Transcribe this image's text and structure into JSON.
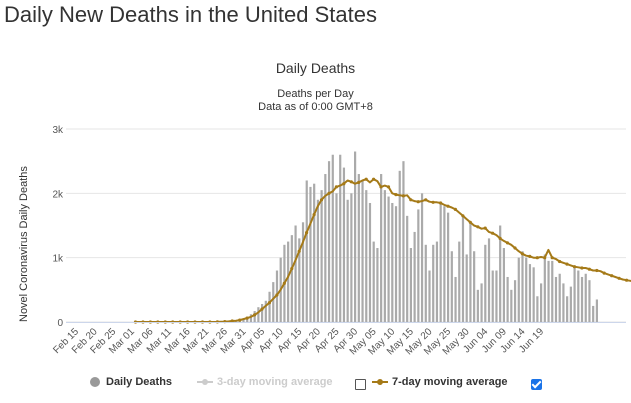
{
  "page": {
    "title": "Daily New Deaths in the United States"
  },
  "chart_data": {
    "type": "bar",
    "title": "Daily Deaths",
    "subtitle_lines": [
      "Deaths per Day",
      "Data as of 0:00 GMT+8"
    ],
    "ylabel": "Novel Coronavirus Daily Deaths",
    "xlabel": "",
    "ylim": [
      0,
      3000
    ],
    "y_ticks": [
      0,
      1000,
      2000,
      3000
    ],
    "y_tick_labels": [
      "0",
      "1k",
      "2k",
      "3k"
    ],
    "x_start_date": "Feb 15",
    "x_tick_labels": [
      "Feb 15",
      "Feb 20",
      "Feb 25",
      "Mar 01",
      "Mar 06",
      "Mar 11",
      "Mar 16",
      "Mar 21",
      "Mar 26",
      "Mar 31",
      "Apr 05",
      "Apr 10",
      "Apr 15",
      "Apr 20",
      "Apr 25",
      "Apr 30",
      "May 05",
      "May 10",
      "May 15",
      "May 20",
      "May 25",
      "May 30",
      "Jun 04",
      "Jun 09",
      "Jun 14",
      "Jun 19"
    ],
    "grid": true,
    "legend_position": "bottom",
    "series": [
      {
        "name": "Daily Deaths",
        "kind": "bar",
        "color": "#aaaaaa",
        "values": [
          0,
          0,
          0,
          0,
          0,
          0,
          0,
          0,
          0,
          0,
          0,
          0,
          0,
          0,
          0,
          0,
          0,
          0,
          0,
          0,
          0,
          0,
          0,
          0,
          0,
          0,
          0,
          0,
          0,
          0,
          0,
          0,
          0,
          0,
          0,
          0,
          0,
          0,
          2,
          4,
          6,
          12,
          15,
          30,
          40,
          50,
          80,
          120,
          170,
          230,
          280,
          330,
          470,
          620,
          800,
          1000,
          1200,
          1250,
          1350,
          1500,
          1300,
          1550,
          2200,
          2100,
          2150,
          1900,
          2050,
          2300,
          2500,
          2600,
          2000,
          2600,
          2400,
          1900,
          2000,
          2650,
          2300,
          2200,
          2050,
          1850,
          1250,
          1150,
          2300,
          2050,
          1950,
          1850,
          1800,
          2350,
          2500,
          1650,
          1150,
          1400,
          1750,
          2000,
          1200,
          800,
          1200,
          1250,
          1850,
          1800,
          1700,
          1100,
          700,
          1250,
          1650,
          1050,
          1550,
          1100,
          500,
          600,
          1200,
          1300,
          800,
          800,
          1500,
          1150,
          700,
          500,
          650,
          1000,
          1100,
          1000,
          900,
          850,
          400,
          600,
          1050,
          950,
          950,
          700,
          750,
          600,
          400,
          550,
          850,
          800,
          700,
          750,
          650,
          250,
          350
        ],
        "visible": true
      },
      {
        "name": "3-day moving average",
        "kind": "line",
        "color": "#cccccc",
        "visible": false
      },
      {
        "name": "7-day moving average",
        "kind": "line",
        "color": "#a57a18",
        "start_index": 16,
        "values": [
          0,
          0,
          0,
          0,
          0,
          0,
          0,
          0,
          0,
          0,
          0,
          0,
          0,
          0,
          0,
          0,
          0,
          0,
          0,
          0,
          0,
          0,
          2,
          4,
          6,
          10,
          15,
          20,
          30,
          45,
          60,
          80,
          110,
          150,
          200,
          250,
          300,
          360,
          420,
          500,
          600,
          700,
          830,
          960,
          1100,
          1240,
          1390,
          1530,
          1670,
          1800,
          1900,
          1960,
          2000,
          2030,
          2100,
          2120,
          2150,
          2200,
          2180,
          2150,
          2170,
          2200,
          2220,
          2170,
          2220,
          2190,
          2100,
          2120,
          2100,
          2000,
          1980,
          1970,
          1960,
          1970,
          1900,
          1880,
          1870,
          1880,
          1900,
          1870,
          1860,
          1860,
          1850,
          1820,
          1800,
          1780,
          1750,
          1700,
          1650,
          1600,
          1550,
          1500,
          1480,
          1450,
          1460,
          1400,
          1380,
          1350,
          1300,
          1260,
          1230,
          1200,
          1150,
          1100,
          1060,
          1030,
          1020,
          1000,
          1000,
          1010,
          1000,
          1120,
          1000,
          980,
          940,
          920,
          900,
          880,
          860,
          850,
          840,
          840,
          820,
          800,
          800,
          790,
          760,
          740,
          720,
          700,
          680,
          660,
          650,
          640,
          630,
          620
        ]
      }
    ]
  },
  "legend": {
    "items": [
      {
        "label": "Daily Deaths",
        "color": "#999999",
        "icon": "dot"
      },
      {
        "label": "3-day moving average",
        "color": "#cccccc",
        "icon": "line-dot",
        "checked": false
      },
      {
        "label": "7-day moving average",
        "color": "#a57a18",
        "icon": "line-dot",
        "checked": true
      }
    ]
  }
}
